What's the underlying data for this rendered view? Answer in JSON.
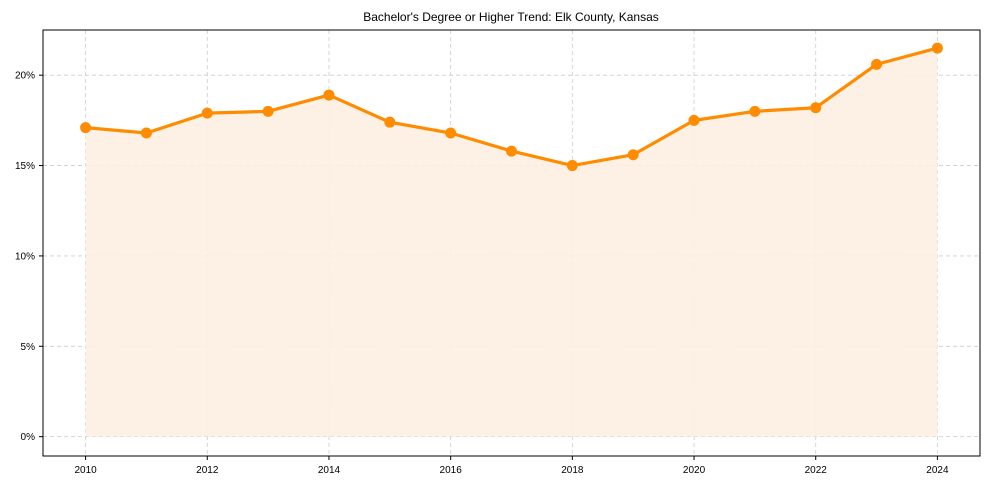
{
  "chart_data": {
    "type": "line",
    "title": "Bachelor's Degree or Higher Trend: Elk County, Kansas",
    "xlabel": "",
    "ylabel": "",
    "x": [
      2010,
      2011,
      2012,
      2013,
      2014,
      2015,
      2016,
      2017,
      2018,
      2019,
      2020,
      2021,
      2022,
      2023,
      2024
    ],
    "series": [
      {
        "name": "Bachelor's Degree or Higher (%)",
        "values": [
          17.1,
          16.8,
          17.9,
          18.0,
          18.9,
          17.4,
          16.8,
          15.8,
          15.0,
          15.6,
          17.5,
          18.0,
          18.2,
          20.6,
          21.5
        ],
        "color": "#ff8c00",
        "fill_color": "#fdf0e3",
        "marker": "circle",
        "area_fill": true
      }
    ],
    "xticks": [
      2010,
      2012,
      2014,
      2016,
      2018,
      2020,
      2022,
      2024
    ],
    "xtick_labels": [
      "2010",
      "2012",
      "2014",
      "2016",
      "2018",
      "2020",
      "2022",
      "2024"
    ],
    "yticks": [
      0,
      5,
      10,
      15,
      20
    ],
    "ytick_labels": [
      "0%",
      "5%",
      "10%",
      "15%",
      "20%"
    ],
    "xlim": [
      2009.3,
      2024.7
    ],
    "ylim": [
      -1.07,
      22.5
    ],
    "grid": true,
    "legend": null
  }
}
